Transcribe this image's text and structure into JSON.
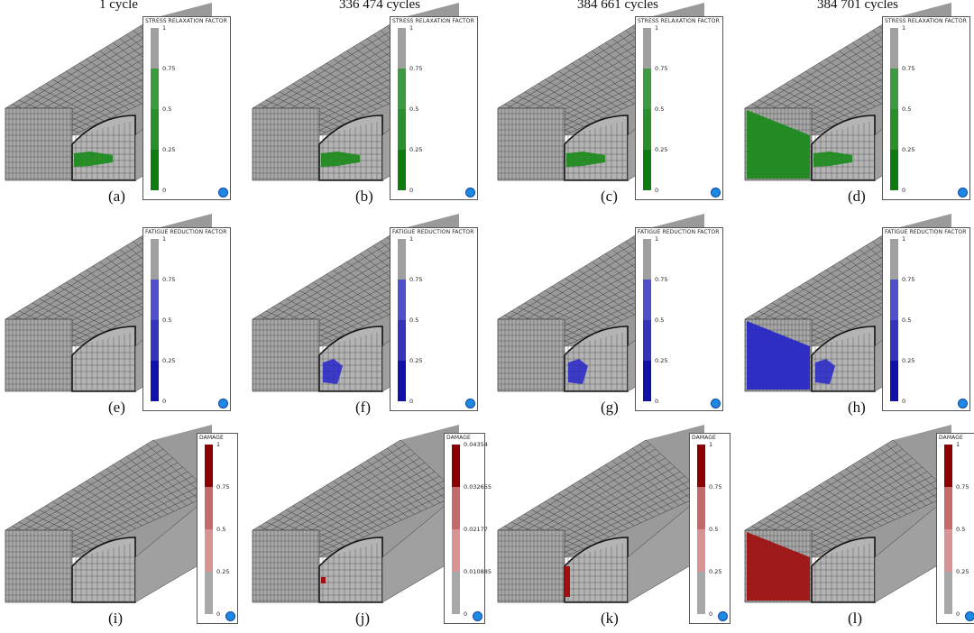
{
  "columns": [
    "1 cycle",
    "336 474 cycles",
    "384 661 cycles",
    "384 701 cycles"
  ],
  "rows": [
    {
      "legend_title": "STRESS RELAXATION FACTOR",
      "color": "#1a8a1a",
      "labels": [
        "(a)",
        "(b)",
        "(c)",
        "(d)"
      ],
      "ticks": [
        [
          "1",
          "0.75",
          "0.5",
          "0.25",
          "0"
        ],
        [
          "1",
          "0.75",
          "0.5",
          "0.25",
          "0"
        ],
        [
          "1",
          "0.75",
          "0.5",
          "0.25",
          "0"
        ],
        [
          "1",
          "0.75",
          "0.5",
          "0.25",
          "0"
        ]
      ]
    },
    {
      "legend_title": "FATIGUE REDUCTION FACTOR",
      "color": "#2626c8",
      "labels": [
        "(e)",
        "(f)",
        "(g)",
        "(h)"
      ],
      "ticks": [
        [
          "1",
          "0.75",
          "0.5",
          "0.25",
          "0"
        ],
        [
          "1",
          "0.75",
          "0.5",
          "0.25",
          "0"
        ],
        [
          "1",
          "0.75",
          "0.5",
          "0.25",
          "0"
        ],
        [
          "1",
          "0.75",
          "0.5",
          "0.25",
          "0"
        ]
      ]
    },
    {
      "legend_title": "DAMAGE",
      "color": "#a01010",
      "labels": [
        "(i)",
        "(j)",
        "(k)",
        "(l)"
      ],
      "ticks": [
        [
          "1",
          "0.75",
          "0.5",
          "0.25",
          "0"
        ],
        [
          "0.04354",
          "0.032655",
          "0.02177",
          "0.010885",
          "0"
        ],
        [
          "1",
          "0.75",
          "0.5",
          "0.25",
          "0"
        ],
        [
          "1",
          "0.75",
          "0.5",
          "0.25",
          "0"
        ]
      ]
    }
  ],
  "icons": {
    "legend_logo": "software-logo-icon"
  }
}
